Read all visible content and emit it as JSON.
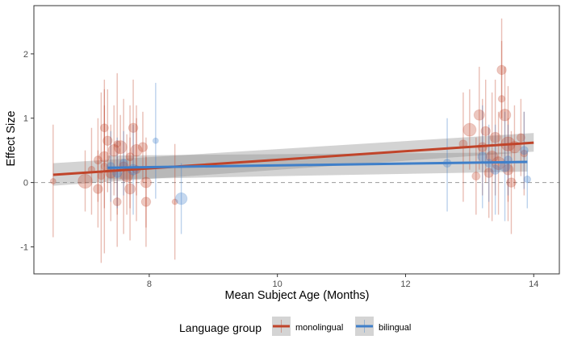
{
  "chart_data": {
    "type": "scatter",
    "xlabel": "Mean Subject Age (Months)",
    "ylabel": "Effect Size",
    "xlim": [
      6.2,
      14.4
    ],
    "ylim": [
      -1.42,
      2.75
    ],
    "xticks": [
      8,
      10,
      12,
      14
    ],
    "yticks": [
      -1,
      0,
      1,
      2
    ],
    "reference_line_y": 0,
    "grid": false,
    "legend": {
      "title": "Language group",
      "position": "bottom"
    },
    "series": [
      {
        "name": "monolingual",
        "color": "#c0442a",
        "fit": {
          "x": [
            6.5,
            14.0
          ],
          "y": [
            0.12,
            0.62
          ],
          "band_lower": [
            -0.05,
            0.48
          ],
          "band_upper": [
            0.3,
            0.77
          ]
        },
        "points": [
          {
            "x": 6.5,
            "y": 0.02,
            "lo": -0.85,
            "hi": 0.9,
            "s": 2
          },
          {
            "x": 7.0,
            "y": 0.02,
            "lo": -0.45,
            "hi": 0.5,
            "s": 9
          },
          {
            "x": 7.1,
            "y": 0.2,
            "lo": -0.5,
            "hi": 0.85,
            "s": 3
          },
          {
            "x": 7.2,
            "y": 0.35,
            "lo": -0.3,
            "hi": 1.0,
            "s": 4
          },
          {
            "x": 7.2,
            "y": -0.1,
            "lo": -0.7,
            "hi": 0.5,
            "s": 5
          },
          {
            "x": 7.25,
            "y": 0.1,
            "lo": -1.25,
            "hi": 1.4,
            "s": 3
          },
          {
            "x": 7.3,
            "y": 0.85,
            "lo": 0.25,
            "hi": 1.45,
            "s": 4
          },
          {
            "x": 7.3,
            "y": 0.4,
            "lo": -0.4,
            "hi": 1.2,
            "s": 6
          },
          {
            "x": 7.3,
            "y": 0.25,
            "lo": -1.1,
            "hi": 1.6,
            "s": 3
          },
          {
            "x": 7.35,
            "y": 0.65,
            "lo": -0.15,
            "hi": 1.45,
            "s": 5
          },
          {
            "x": 7.4,
            "y": 0.15,
            "lo": -0.6,
            "hi": 0.9,
            "s": 6
          },
          {
            "x": 7.45,
            "y": 0.5,
            "lo": -0.2,
            "hi": 1.2,
            "s": 7
          },
          {
            "x": 7.5,
            "y": -0.3,
            "lo": -1.0,
            "hi": 0.4,
            "s": 4
          },
          {
            "x": 7.5,
            "y": 0.6,
            "lo": -0.5,
            "hi": 1.7,
            "s": 3
          },
          {
            "x": 7.55,
            "y": 0.55,
            "lo": 0.05,
            "hi": 1.05,
            "s": 8
          },
          {
            "x": 7.6,
            "y": 0.25,
            "lo": -0.8,
            "hi": 1.3,
            "s": 5
          },
          {
            "x": 7.65,
            "y": 0.1,
            "lo": -0.5,
            "hi": 0.75,
            "s": 7
          },
          {
            "x": 7.7,
            "y": 0.4,
            "lo": -0.4,
            "hi": 1.2,
            "s": 4
          },
          {
            "x": 7.7,
            "y": -0.1,
            "lo": -0.9,
            "hi": 0.7,
            "s": 6
          },
          {
            "x": 7.75,
            "y": 0.85,
            "lo": 0.1,
            "hi": 1.6,
            "s": 5
          },
          {
            "x": 7.8,
            "y": 0.5,
            "lo": -0.2,
            "hi": 1.2,
            "s": 7
          },
          {
            "x": 7.8,
            "y": 0.2,
            "lo": -0.6,
            "hi": 1.0,
            "s": 4
          },
          {
            "x": 7.9,
            "y": 0.55,
            "lo": 0.0,
            "hi": 1.1,
            "s": 5
          },
          {
            "x": 7.95,
            "y": 0.0,
            "lo": -0.7,
            "hi": 0.7,
            "s": 6
          },
          {
            "x": 7.95,
            "y": -0.3,
            "lo": -1.0,
            "hi": 0.4,
            "s": 5
          },
          {
            "x": 8.4,
            "y": -0.3,
            "lo": -1.2,
            "hi": 0.6,
            "s": 2
          },
          {
            "x": 12.9,
            "y": 0.6,
            "lo": -0.3,
            "hi": 1.4,
            "s": 4
          },
          {
            "x": 13.0,
            "y": 0.82,
            "lo": 0.2,
            "hi": 1.45,
            "s": 8
          },
          {
            "x": 13.1,
            "y": 0.1,
            "lo": -0.5,
            "hi": 0.7,
            "s": 4
          },
          {
            "x": 13.15,
            "y": 1.05,
            "lo": 0.2,
            "hi": 1.8,
            "s": 6
          },
          {
            "x": 13.2,
            "y": 0.55,
            "lo": -0.2,
            "hi": 1.3,
            "s": 5
          },
          {
            "x": 13.25,
            "y": 0.8,
            "lo": 0.0,
            "hi": 1.6,
            "s": 5
          },
          {
            "x": 13.3,
            "y": 0.15,
            "lo": -0.55,
            "hi": 0.85,
            "s": 5
          },
          {
            "x": 13.35,
            "y": 0.4,
            "lo": -0.6,
            "hi": 1.4,
            "s": 7
          },
          {
            "x": 13.4,
            "y": 0.7,
            "lo": -0.2,
            "hi": 1.6,
            "s": 6
          },
          {
            "x": 13.45,
            "y": 0.3,
            "lo": -0.5,
            "hi": 1.1,
            "s": 8
          },
          {
            "x": 13.5,
            "y": 1.75,
            "lo": 1.0,
            "hi": 2.55,
            "s": 5
          },
          {
            "x": 13.5,
            "y": 1.3,
            "lo": 0.4,
            "hi": 2.2,
            "s": 3
          },
          {
            "x": 13.55,
            "y": 1.05,
            "lo": 0.3,
            "hi": 1.8,
            "s": 7
          },
          {
            "x": 13.6,
            "y": 0.6,
            "lo": -0.3,
            "hi": 1.5,
            "s": 9
          },
          {
            "x": 13.6,
            "y": 0.2,
            "lo": -0.6,
            "hi": 1.0,
            "s": 6
          },
          {
            "x": 13.65,
            "y": 0.0,
            "lo": -0.8,
            "hi": 0.8,
            "s": 5
          },
          {
            "x": 13.7,
            "y": 0.55,
            "lo": -0.1,
            "hi": 1.2,
            "s": 7
          },
          {
            "x": 13.8,
            "y": 0.7,
            "lo": 0.1,
            "hi": 1.3,
            "s": 4
          },
          {
            "x": 13.85,
            "y": 0.45,
            "lo": -0.2,
            "hi": 1.1,
            "s": 3
          }
        ]
      },
      {
        "name": "bilingual",
        "color": "#3f7fc9",
        "fit": {
          "x": [
            7.35,
            13.9
          ],
          "y": [
            0.23,
            0.32
          ],
          "band_lower": [
            0.05,
            0.17
          ],
          "band_upper": [
            0.42,
            0.47
          ]
        },
        "points": [
          {
            "x": 7.4,
            "y": 0.25,
            "lo": -0.3,
            "hi": 0.8,
            "s": 4
          },
          {
            "x": 7.5,
            "y": 0.15,
            "lo": -0.4,
            "hi": 0.7,
            "s": 5
          },
          {
            "x": 7.6,
            "y": 0.3,
            "lo": -0.2,
            "hi": 0.8,
            "s": 4
          },
          {
            "x": 7.75,
            "y": 0.2,
            "lo": -0.5,
            "hi": 0.9,
            "s": 6
          },
          {
            "x": 8.1,
            "y": 0.65,
            "lo": -0.25,
            "hi": 1.55,
            "s": 2
          },
          {
            "x": 8.5,
            "y": -0.25,
            "lo": -0.8,
            "hi": 0.3,
            "s": 7
          },
          {
            "x": 12.65,
            "y": 0.3,
            "lo": -0.45,
            "hi": 1.0,
            "s": 4
          },
          {
            "x": 13.2,
            "y": 0.4,
            "lo": -0.4,
            "hi": 1.2,
            "s": 5
          },
          {
            "x": 13.3,
            "y": 0.3,
            "lo": -0.3,
            "hi": 0.9,
            "s": 4
          },
          {
            "x": 13.4,
            "y": 0.2,
            "lo": -0.5,
            "hi": 0.9,
            "s": 5
          },
          {
            "x": 13.55,
            "y": 0.25,
            "lo": -0.6,
            "hi": 1.1,
            "s": 6
          },
          {
            "x": 13.6,
            "y": 0.35,
            "lo": -0.2,
            "hi": 0.9,
            "s": 4
          },
          {
            "x": 13.85,
            "y": 0.5,
            "lo": -0.1,
            "hi": 1.1,
            "s": 4
          },
          {
            "x": 13.9,
            "y": 0.05,
            "lo": -0.4,
            "hi": 0.5,
            "s": 3
          }
        ]
      }
    ]
  }
}
